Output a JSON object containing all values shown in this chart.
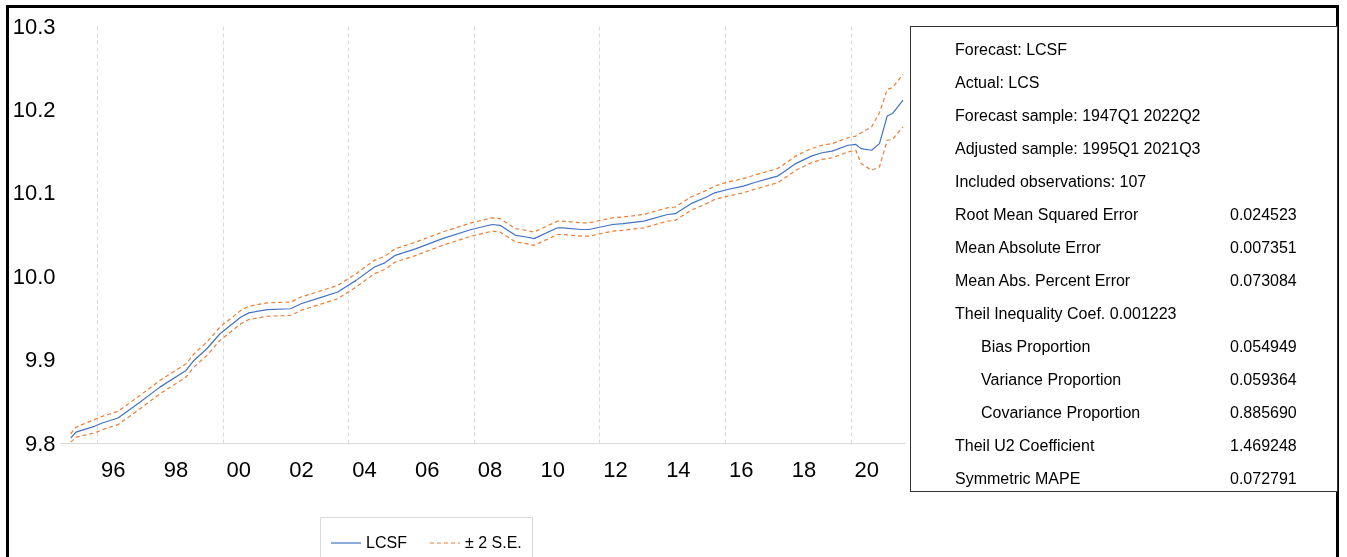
{
  "chart_data": {
    "type": "line",
    "x": [
      "1995-03",
      "1995-05",
      "1995-12",
      "1996-03",
      "1996-09",
      "1997-05",
      "1998-01",
      "1998-11",
      "1999-02",
      "1999-07",
      "1999-12",
      "2000-08",
      "2000-11",
      "2001-06",
      "2002-03",
      "2002-07",
      "2003-02",
      "2003-09",
      "2003-12",
      "2004-04",
      "2004-11",
      "2005-03",
      "2005-07",
      "2006-03",
      "2007-01",
      "2007-12",
      "2008-08",
      "2008-11",
      "2009-05",
      "2009-09",
      "2009-12",
      "2010-09",
      "2010-11",
      "2011-06",
      "2011-09",
      "2012-06",
      "2012-10",
      "2013-06",
      "2014-03",
      "2014-06",
      "2014-12",
      "2015-06",
      "2015-09",
      "2016-02",
      "2016-08",
      "2016-12",
      "2017-09",
      "2017-11",
      "2018-04",
      "2018-10",
      "2019-02",
      "2019-06",
      "2019-12",
      "2020-03",
      "2020-05",
      "2020-09",
      "2020-12",
      "2021-03",
      "2021-05",
      "2021-09"
    ],
    "series": [
      {
        "name": "LCSF",
        "color": "#4472c4",
        "line_style": "solid",
        "values": [
          9.806,
          9.813,
          9.82,
          9.824,
          9.83,
          9.848,
          9.867,
          9.887,
          9.899,
          9.913,
          9.931,
          9.951,
          9.956,
          9.96,
          9.961,
          9.967,
          9.974,
          9.981,
          9.987,
          9.995,
          10.011,
          10.016,
          10.025,
          10.033,
          10.045,
          10.056,
          10.062,
          10.061,
          10.049,
          10.047,
          10.045,
          10.058,
          10.058,
          10.056,
          10.056,
          10.062,
          10.063,
          10.066,
          10.074,
          10.075,
          10.087,
          10.095,
          10.1,
          10.104,
          10.108,
          10.112,
          10.12,
          10.124,
          10.135,
          10.144,
          10.148,
          10.15,
          10.157,
          10.158,
          10.153,
          10.151,
          10.159,
          10.192,
          10.195,
          10.211
        ]
      },
      {
        "name": "± 2 S.E.",
        "color": "#ed7d31",
        "line_style": "dashed",
        "values": [
          9.811,
          9.819,
          9.828,
          9.832,
          9.838,
          9.856,
          9.875,
          9.895,
          9.907,
          9.921,
          9.939,
          9.959,
          9.964,
          9.968,
          9.969,
          9.975,
          9.982,
          9.989,
          9.995,
          10.003,
          10.019,
          10.024,
          10.033,
          10.041,
          10.053,
          10.064,
          10.07,
          10.069,
          10.057,
          10.055,
          10.053,
          10.066,
          10.066,
          10.064,
          10.064,
          10.07,
          10.071,
          10.074,
          10.082,
          10.083,
          10.095,
          10.103,
          10.108,
          10.113,
          10.117,
          10.121,
          10.129,
          10.133,
          10.144,
          10.153,
          10.157,
          10.159,
          10.166,
          10.168,
          10.172,
          10.179,
          10.196,
          10.224,
          10.226,
          10.242
        ]
      },
      {
        "color": "#ed7d31",
        "line_style": "dashed",
        "values": [
          9.801,
          9.807,
          9.812,
          9.816,
          9.822,
          9.84,
          9.859,
          9.879,
          9.891,
          9.905,
          9.923,
          9.943,
          9.948,
          9.952,
          9.953,
          9.959,
          9.966,
          9.973,
          9.979,
          9.987,
          10.003,
          10.008,
          10.017,
          10.025,
          10.037,
          10.048,
          10.054,
          10.053,
          10.041,
          10.039,
          10.037,
          10.05,
          10.05,
          10.048,
          10.048,
          10.054,
          10.055,
          10.058,
          10.066,
          10.067,
          10.079,
          10.087,
          10.092,
          10.096,
          10.1,
          10.104,
          10.112,
          10.116,
          10.127,
          10.136,
          10.14,
          10.142,
          10.149,
          10.151,
          10.135,
          10.127,
          10.131,
          10.163,
          10.164,
          10.179
        ]
      }
    ],
    "xlim": [
      "1994-10-27",
      "2021-09-24"
    ],
    "xticks": [
      {
        "value": "1996",
        "label": null
      },
      {
        "value": "2000",
        "label": null
      },
      {
        "value": "2004",
        "label": null
      },
      {
        "value": "2008",
        "label": null
      },
      {
        "value": "2012",
        "label": null
      },
      {
        "value": "2016",
        "label": null
      },
      {
        "value": "2020",
        "label": null
      },
      {
        "value": "1996-07",
        "label": "96"
      },
      {
        "value": "1998-07",
        "label": "98"
      },
      {
        "value": "2000-07",
        "label": "00"
      },
      {
        "value": "2002-07",
        "label": "02"
      },
      {
        "value": "2004-07",
        "label": "04"
      },
      {
        "value": "2006-07",
        "label": "06"
      },
      {
        "value": "2008-07",
        "label": "08"
      },
      {
        "value": "2010-07",
        "label": "10"
      },
      {
        "value": "2012-07",
        "label": "12"
      },
      {
        "value": "2014-07",
        "label": "14"
      },
      {
        "value": "2016-07",
        "label": "16"
      },
      {
        "value": "2018-07",
        "label": "18"
      },
      {
        "value": "2020-07",
        "label": "20"
      }
    ],
    "ylim": [
      9.8,
      10.3
    ],
    "yticks": [
      9.8,
      9.9,
      {
        "value": 10,
        "label": "10.0"
      },
      10.1,
      10.2,
      10.3
    ],
    "grid": "x",
    "legend": "bottom",
    "marker": "none",
    "annotations": [
      "Forecast: LCSF",
      "Actual: LCS",
      "Forecast sample: 1947Q1 2022Q2",
      "Adjusted sample: 1995Q1 2021Q3",
      "Included observations: 107",
      "Root Mean Squared Error\t0.024523",
      "Mean Absolute Error\t0.007351",
      "Mean Abs. Percent Error\t0.073084",
      "Theil Inequality Coef. 0.001223",
      "\tBias Proportion\t0.054949",
      "\tVariance Proportion\t0.059364",
      "\tCovariance Proportion\t0.885690",
      "Theil U2 Coefficient\t1.469248",
      "Symmetric MAPE\t0.072791"
    ]
  }
}
